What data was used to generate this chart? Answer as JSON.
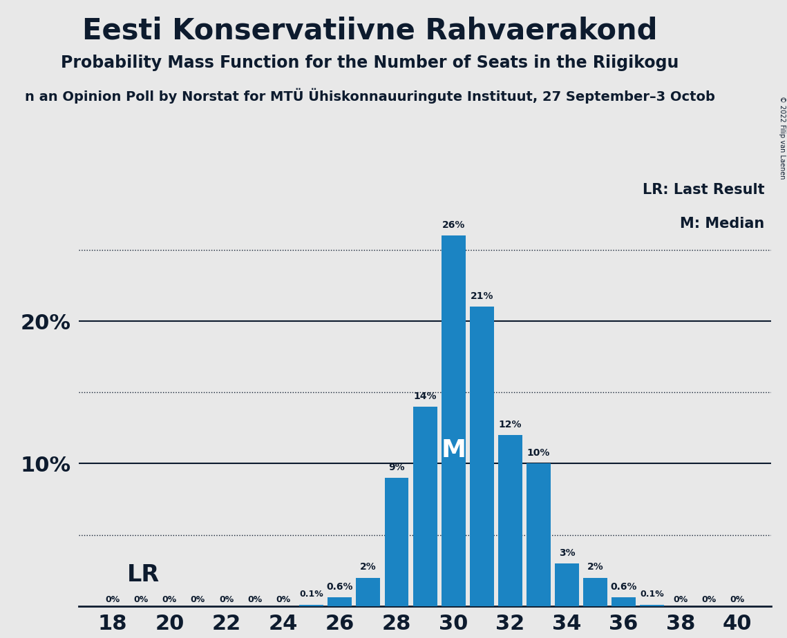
{
  "title": "Eesti Konservatiivne Rahvaerakond",
  "subtitle": "Probability Mass Function for the Number of Seats in the Riigikogu",
  "subtitle2": "n an Opinion Poll by Norstat for MTÜ Ühiskonnauuringute Instituut, 27 September–3 Octob",
  "copyright": "© 2022 Filip van Laenen",
  "seats": [
    18,
    19,
    20,
    21,
    22,
    23,
    24,
    25,
    26,
    27,
    28,
    29,
    30,
    31,
    32,
    33,
    34,
    35,
    36,
    37,
    38,
    39,
    40
  ],
  "probabilities": [
    0.0,
    0.0,
    0.0,
    0.0,
    0.0,
    0.0,
    0.0,
    0.1,
    0.6,
    2.0,
    9.0,
    14.0,
    26.0,
    21.0,
    12.0,
    10.0,
    3.0,
    2.0,
    0.6,
    0.1,
    0.0,
    0.0,
    0.0
  ],
  "labels": [
    "0%",
    "0%",
    "0%",
    "0%",
    "0%",
    "0%",
    "0%",
    "0.1%",
    "0.6%",
    "2%",
    "9%",
    "14%",
    "26%",
    "21%",
    "12%",
    "10%",
    "3%",
    "2%",
    "0.6%",
    "0.1%",
    "0%",
    "0%",
    "0%"
  ],
  "median_seat": 30,
  "lr_seat": 19,
  "bar_color": "#1b84c3",
  "background_color": "#e8e8e8",
  "text_color": "#0d1b2e",
  "ylim": [
    0,
    30
  ],
  "solid_lines": [
    10,
    20
  ],
  "dotted_lines": [
    5,
    15,
    25
  ]
}
